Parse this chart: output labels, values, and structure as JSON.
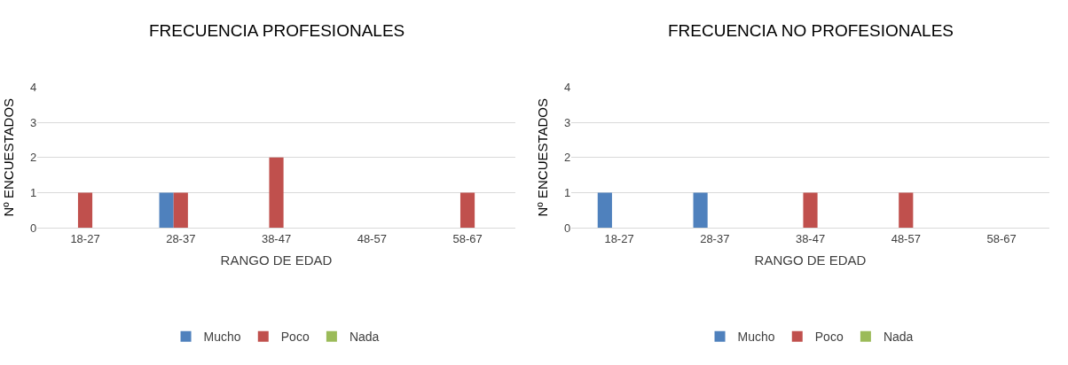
{
  "chart_data": [
    {
      "type": "bar",
      "title": "FRECUENCIA PROFESIONALES",
      "xlabel": "RANGO DE EDAD",
      "ylabel": "Nº ENCUESTADOS",
      "categories": [
        "18-27",
        "28-37",
        "38-47",
        "48-57",
        "58-67"
      ],
      "series": [
        {
          "name": "Mucho",
          "color": "#4f81bd",
          "values": [
            0,
            1,
            0,
            0,
            0
          ]
        },
        {
          "name": "Poco",
          "color": "#c0504d",
          "values": [
            1,
            1,
            2,
            0,
            1
          ]
        },
        {
          "name": "Nada",
          "color": "#9bbb59",
          "values": [
            0,
            0,
            0,
            0,
            0
          ]
        }
      ],
      "ylim": [
        0,
        4
      ],
      "yticks": [
        0,
        1,
        2,
        3,
        4
      ],
      "grid": "y",
      "legend": "bottom"
    },
    {
      "type": "bar",
      "title": "FRECUENCIA NO PROFESIONALES",
      "xlabel": "RANGO DE EDAD",
      "ylabel": "Nº ENCUESTADOS",
      "categories": [
        "18-27",
        "28-37",
        "38-47",
        "48-57",
        "58-67"
      ],
      "series": [
        {
          "name": "Mucho",
          "color": "#4f81bd",
          "values": [
            1,
            1,
            0,
            0,
            0
          ]
        },
        {
          "name": "Poco",
          "color": "#c0504d",
          "values": [
            0,
            0,
            1,
            1,
            0
          ]
        },
        {
          "name": "Nada",
          "color": "#9bbb59",
          "values": [
            0,
            0,
            0,
            0,
            0
          ]
        }
      ],
      "ylim": [
        0,
        4
      ],
      "yticks": [
        0,
        1,
        2,
        3,
        4
      ],
      "grid": "y",
      "legend": "bottom"
    }
  ]
}
